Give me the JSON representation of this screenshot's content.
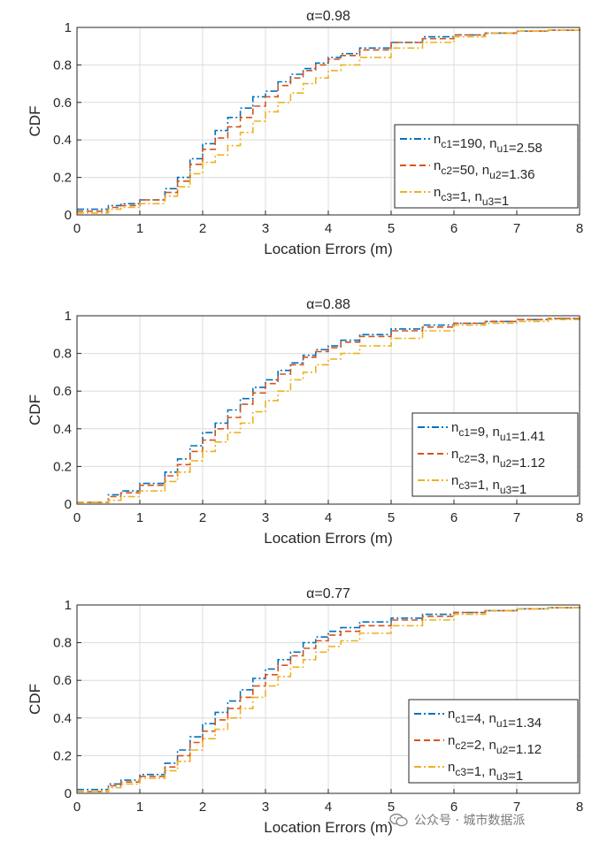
{
  "chart_data": [
    {
      "type": "line",
      "title": "α=0.98",
      "xlabel": "Location Errors (m)",
      "ylabel": "CDF",
      "xlim": [
        0,
        8
      ],
      "ylim": [
        0,
        1
      ],
      "xticks": [
        "0",
        "1",
        "2",
        "3",
        "4",
        "5",
        "6",
        "7",
        "8"
      ],
      "yticks": [
        "0",
        "0.2",
        "0.4",
        "0.6",
        "0.8",
        "1"
      ],
      "grid": true,
      "legend_position": "bottom-right",
      "series": [
        {
          "name": "n_c1=190, n_u1=2.58",
          "color": "#0072BD",
          "dash": "dash-dot",
          "x": [
            0,
            0.5,
            0.7,
            1,
            1.4,
            1.6,
            1.8,
            2,
            2.2,
            2.4,
            2.6,
            2.8,
            3,
            3.2,
            3.4,
            3.6,
            3.8,
            4,
            4.2,
            4.5,
            5,
            5.5,
            6,
            6.5,
            7,
            7.5,
            8
          ],
          "y": [
            0.03,
            0.05,
            0.06,
            0.08,
            0.14,
            0.2,
            0.3,
            0.38,
            0.45,
            0.52,
            0.57,
            0.63,
            0.66,
            0.71,
            0.75,
            0.78,
            0.81,
            0.84,
            0.86,
            0.89,
            0.92,
            0.95,
            0.96,
            0.97,
            0.98,
            0.985,
            0.99
          ]
        },
        {
          "name": "n_c2=50, n_u2=1.36",
          "color": "#D95319",
          "dash": "dash",
          "x": [
            0,
            0.5,
            0.7,
            1,
            1.4,
            1.6,
            1.8,
            2,
            2.2,
            2.4,
            2.6,
            2.8,
            3,
            3.2,
            3.4,
            3.6,
            3.8,
            4,
            4.2,
            4.5,
            5,
            5.5,
            6,
            6.5,
            7,
            7.5,
            8
          ],
          "y": [
            0.02,
            0.04,
            0.05,
            0.08,
            0.12,
            0.18,
            0.27,
            0.35,
            0.41,
            0.47,
            0.52,
            0.58,
            0.63,
            0.69,
            0.73,
            0.77,
            0.8,
            0.83,
            0.85,
            0.88,
            0.92,
            0.94,
            0.96,
            0.97,
            0.98,
            0.985,
            0.99
          ]
        },
        {
          "name": "n_c3=1, n_u3=1",
          "color": "#EDB120",
          "dash": "dash-dot",
          "x": [
            0,
            0.5,
            0.7,
            1,
            1.4,
            1.6,
            1.8,
            2,
            2.2,
            2.4,
            2.6,
            2.8,
            3,
            3.2,
            3.4,
            3.6,
            3.8,
            4,
            4.2,
            4.5,
            5,
            5.5,
            6,
            6.5,
            7,
            7.5,
            8
          ],
          "y": [
            0.01,
            0.03,
            0.04,
            0.06,
            0.1,
            0.15,
            0.22,
            0.28,
            0.32,
            0.37,
            0.44,
            0.5,
            0.55,
            0.6,
            0.65,
            0.7,
            0.73,
            0.77,
            0.8,
            0.84,
            0.89,
            0.92,
            0.95,
            0.97,
            0.98,
            0.985,
            0.99
          ]
        }
      ]
    },
    {
      "type": "line",
      "title": "α=0.88",
      "xlabel": "Location Errors (m)",
      "ylabel": "CDF",
      "xlim": [
        0,
        8
      ],
      "ylim": [
        0,
        1
      ],
      "xticks": [
        "0",
        "1",
        "2",
        "3",
        "4",
        "5",
        "6",
        "7",
        "8"
      ],
      "yticks": [
        "0",
        "0.2",
        "0.4",
        "0.6",
        "0.8",
        "1"
      ],
      "grid": true,
      "legend_position": "bottom-right",
      "series": [
        {
          "name": "n_c1=9, n_u1=1.41",
          "color": "#0072BD",
          "dash": "dash-dot",
          "x": [
            0,
            0.5,
            0.7,
            1,
            1.4,
            1.6,
            1.8,
            2,
            2.2,
            2.4,
            2.6,
            2.8,
            3,
            3.2,
            3.4,
            3.6,
            3.8,
            4,
            4.2,
            4.5,
            5,
            5.5,
            6,
            6.5,
            7,
            7.5,
            8
          ],
          "y": [
            0.01,
            0.05,
            0.07,
            0.11,
            0.17,
            0.24,
            0.31,
            0.38,
            0.43,
            0.5,
            0.56,
            0.62,
            0.66,
            0.71,
            0.75,
            0.79,
            0.82,
            0.84,
            0.87,
            0.9,
            0.93,
            0.95,
            0.96,
            0.97,
            0.98,
            0.985,
            0.99
          ]
        },
        {
          "name": "n_c2=3, n_u2=1.12",
          "color": "#D95319",
          "dash": "dash",
          "x": [
            0,
            0.5,
            0.7,
            1,
            1.4,
            1.6,
            1.8,
            2,
            2.2,
            2.4,
            2.6,
            2.8,
            3,
            3.2,
            3.4,
            3.6,
            3.8,
            4,
            4.2,
            4.5,
            5,
            5.5,
            6,
            6.5,
            7,
            7.5,
            8
          ],
          "y": [
            0.01,
            0.04,
            0.06,
            0.1,
            0.15,
            0.21,
            0.28,
            0.34,
            0.4,
            0.46,
            0.53,
            0.59,
            0.64,
            0.69,
            0.74,
            0.78,
            0.81,
            0.83,
            0.86,
            0.89,
            0.92,
            0.94,
            0.96,
            0.97,
            0.98,
            0.985,
            0.99
          ]
        },
        {
          "name": "n_c3=1, n_u3=1",
          "color": "#EDB120",
          "dash": "dash-dot",
          "x": [
            0,
            0.5,
            0.7,
            1,
            1.4,
            1.6,
            1.8,
            2,
            2.2,
            2.4,
            2.6,
            2.8,
            3,
            3.2,
            3.4,
            3.6,
            3.8,
            4,
            4.2,
            4.5,
            5,
            5.5,
            6,
            6.5,
            7,
            7.5,
            8
          ],
          "y": [
            0.01,
            0.02,
            0.04,
            0.07,
            0.12,
            0.17,
            0.23,
            0.28,
            0.33,
            0.38,
            0.43,
            0.49,
            0.55,
            0.6,
            0.66,
            0.7,
            0.74,
            0.77,
            0.8,
            0.84,
            0.88,
            0.92,
            0.95,
            0.96,
            0.97,
            0.98,
            0.99
          ]
        }
      ]
    },
    {
      "type": "line",
      "title": "α=0.77",
      "xlabel": "Location Errors (m)",
      "ylabel": "CDF",
      "xlim": [
        0,
        8
      ],
      "ylim": [
        0,
        1
      ],
      "xticks": [
        "0",
        "1",
        "2",
        "3",
        "4",
        "5",
        "6",
        "7",
        "8"
      ],
      "yticks": [
        "0",
        "0.2",
        "0.4",
        "0.6",
        "0.8",
        "1"
      ],
      "grid": true,
      "legend_position": "bottom-right",
      "series": [
        {
          "name": "n_c1=4, n_u1=1.34",
          "color": "#0072BD",
          "dash": "dash-dot",
          "x": [
            0,
            0.5,
            0.7,
            1,
            1.4,
            1.6,
            1.8,
            2,
            2.2,
            2.4,
            2.6,
            2.8,
            3,
            3.2,
            3.4,
            3.6,
            3.8,
            4,
            4.2,
            4.5,
            5,
            5.5,
            6,
            6.5,
            7,
            7.5,
            8
          ],
          "y": [
            0.02,
            0.05,
            0.07,
            0.1,
            0.16,
            0.23,
            0.3,
            0.37,
            0.43,
            0.49,
            0.55,
            0.61,
            0.66,
            0.71,
            0.75,
            0.8,
            0.83,
            0.86,
            0.88,
            0.91,
            0.93,
            0.95,
            0.96,
            0.97,
            0.98,
            0.985,
            0.99
          ]
        },
        {
          "name": "n_c2=2, n_u2=1.12",
          "color": "#D95319",
          "dash": "dash",
          "x": [
            0,
            0.5,
            0.7,
            1,
            1.4,
            1.6,
            1.8,
            2,
            2.2,
            2.4,
            2.6,
            2.8,
            3,
            3.2,
            3.4,
            3.6,
            3.8,
            4,
            4.2,
            4.5,
            5,
            5.5,
            6,
            6.5,
            7,
            7.5,
            8
          ],
          "y": [
            0.01,
            0.04,
            0.06,
            0.09,
            0.14,
            0.2,
            0.27,
            0.33,
            0.39,
            0.45,
            0.51,
            0.57,
            0.63,
            0.68,
            0.73,
            0.77,
            0.81,
            0.84,
            0.86,
            0.89,
            0.92,
            0.94,
            0.96,
            0.97,
            0.98,
            0.985,
            0.99
          ]
        },
        {
          "name": "n_c3=1, n_u3=1",
          "color": "#EDB120",
          "dash": "dash-dot",
          "x": [
            0,
            0.5,
            0.7,
            1,
            1.4,
            1.6,
            1.8,
            2,
            2.2,
            2.4,
            2.6,
            2.8,
            3,
            3.2,
            3.4,
            3.6,
            3.8,
            4,
            4.2,
            4.5,
            5,
            5.5,
            6,
            6.5,
            7,
            7.5,
            8
          ],
          "y": [
            0.01,
            0.03,
            0.05,
            0.08,
            0.12,
            0.17,
            0.23,
            0.29,
            0.34,
            0.4,
            0.45,
            0.51,
            0.57,
            0.62,
            0.67,
            0.71,
            0.75,
            0.78,
            0.81,
            0.85,
            0.89,
            0.92,
            0.95,
            0.97,
            0.98,
            0.985,
            0.99
          ]
        }
      ]
    }
  ],
  "watermark": {
    "icon": "wechat-icon",
    "text": "公众号 · 城市数据派"
  }
}
